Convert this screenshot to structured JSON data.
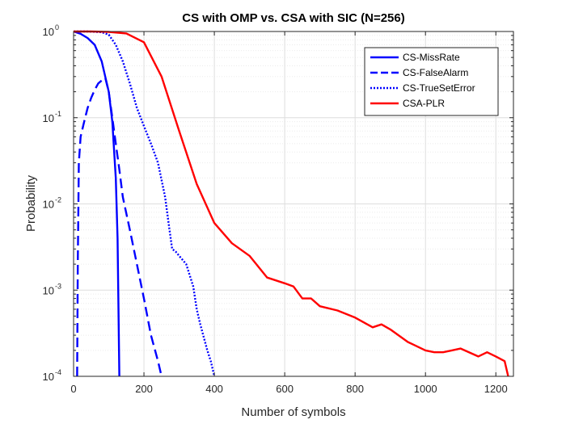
{
  "chart_data": {
    "type": "line",
    "title": "CS with OMP vs. CSA with SIC (N=256)",
    "xlabel": "Number of symbols",
    "ylabel": "Probability",
    "xlim": [
      0,
      1250
    ],
    "ylim": [
      0.0001,
      1
    ],
    "yscale": "log",
    "grid": true,
    "legend_position": "top-right",
    "x_ticks": [
      0,
      200,
      400,
      600,
      800,
      1000,
      1200
    ],
    "x_tick_labels": [
      "0",
      "200",
      "400",
      "600",
      "800",
      "1000",
      "1200"
    ],
    "y_ticks": [
      0.0001,
      0.001,
      0.01,
      0.1,
      1
    ],
    "y_tick_labels": [
      {
        "base": "10",
        "exp": "-4"
      },
      {
        "base": "10",
        "exp": "-3"
      },
      {
        "base": "10",
        "exp": "-2"
      },
      {
        "base": "10",
        "exp": "-1"
      },
      {
        "base": "10",
        "exp": "0"
      }
    ],
    "series": [
      {
        "name": "CS-MissRate",
        "color": "#0000ff",
        "style": "solid",
        "x": [
          0,
          20,
          40,
          60,
          80,
          100,
          110,
          120,
          125,
          130
        ],
        "y": [
          1,
          0.94,
          0.84,
          0.7,
          0.45,
          0.2,
          0.09,
          0.02,
          0.004,
          0.0001
        ]
      },
      {
        "name": "CS-FalseAlarm",
        "color": "#0000ff",
        "style": "dashed",
        "x": [
          10,
          12,
          15,
          20,
          30,
          40,
          50,
          60,
          70,
          80,
          90,
          100,
          110,
          120,
          130,
          140,
          160,
          180,
          200,
          220,
          240,
          250
        ],
        "y": [
          0.0001,
          0.002,
          0.03,
          0.06,
          0.09,
          0.13,
          0.17,
          0.21,
          0.25,
          0.27,
          0.29,
          0.2,
          0.1,
          0.05,
          0.025,
          0.012,
          0.005,
          0.002,
          0.0008,
          0.0003,
          0.00015,
          0.0001
        ]
      },
      {
        "name": "CS-TrueSetError",
        "color": "#0000ff",
        "style": "dotted",
        "x": [
          0,
          40,
          80,
          100,
          120,
          140,
          160,
          180,
          200,
          220,
          240,
          260,
          270,
          280,
          290,
          300,
          320,
          340,
          350,
          360,
          380,
          390,
          400
        ],
        "y": [
          1,
          1,
          0.98,
          0.92,
          0.7,
          0.45,
          0.25,
          0.13,
          0.08,
          0.05,
          0.03,
          0.012,
          0.006,
          0.003,
          0.0028,
          0.0025,
          0.002,
          0.0011,
          0.0006,
          0.0004,
          0.0002,
          0.00015,
          0.0001
        ]
      },
      {
        "name": "CSA-PLR",
        "color": "#ff0000",
        "style": "solid",
        "x": [
          0,
          50,
          100,
          150,
          200,
          250,
          300,
          350,
          400,
          450,
          500,
          550,
          600,
          625,
          650,
          675,
          700,
          750,
          800,
          850,
          875,
          900,
          950,
          1000,
          1025,
          1050,
          1075,
          1100,
          1150,
          1175,
          1200,
          1225,
          1235
        ],
        "y": [
          1,
          1,
          0.99,
          0.95,
          0.75,
          0.3,
          0.07,
          0.017,
          0.006,
          0.0035,
          0.0025,
          0.0014,
          0.0012,
          0.0011,
          0.0008,
          0.0008,
          0.00065,
          0.00058,
          0.00048,
          0.00037,
          0.0004,
          0.00035,
          0.00025,
          0.0002,
          0.00019,
          0.00019,
          0.0002,
          0.00021,
          0.00017,
          0.00019,
          0.00017,
          0.00015,
          0.0001
        ]
      }
    ]
  }
}
